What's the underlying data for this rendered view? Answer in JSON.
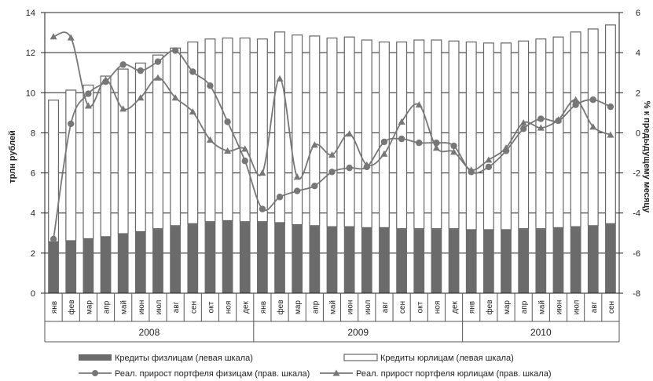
{
  "chart_data": {
    "type": "bar",
    "years": [
      "2008",
      "2009",
      "2010"
    ],
    "months": [
      "янв",
      "фев",
      "мар",
      "апр",
      "май",
      "июн",
      "июл",
      "авг",
      "сен",
      "окт",
      "ноя",
      "дек",
      "янв",
      "фев",
      "мар",
      "апр",
      "май",
      "июн",
      "июл",
      "авг",
      "сен",
      "окт",
      "ноя",
      "дек",
      "янв",
      "фев",
      "мар",
      "апр",
      "май",
      "июн",
      "июл",
      "авг",
      "сен"
    ],
    "ylabel_left": "трлн рублей",
    "ylabel_right": "% к предыдущему месяцу",
    "ylim_left": [
      0,
      14
    ],
    "ylim_right": [
      -8,
      6
    ],
    "yticks_left": [
      "0",
      "2",
      "4",
      "6",
      "8",
      "10",
      "12",
      "14"
    ],
    "yticks_right": [
      "-8",
      "-6",
      "-4",
      "-2",
      "0",
      "2",
      "4",
      "6"
    ],
    "series": [
      {
        "name": "Кредиты физлицам (левая шкала)",
        "axis": "left",
        "kind": "bar",
        "color": "#6b6b6b",
        "values": [
          2.55,
          2.6,
          2.7,
          2.8,
          2.95,
          3.05,
          3.2,
          3.35,
          3.45,
          3.55,
          3.6,
          3.55,
          3.55,
          3.5,
          3.4,
          3.35,
          3.3,
          3.3,
          3.25,
          3.25,
          3.2,
          3.2,
          3.2,
          3.2,
          3.15,
          3.15,
          3.15,
          3.2,
          3.2,
          3.25,
          3.3,
          3.35,
          3.45
        ]
      },
      {
        "name": "Кредиты юрлицам (левая шкала)",
        "axis": "left",
        "kind": "bar",
        "color": "#ffffff",
        "values": [
          7.1,
          7.55,
          7.7,
          8.05,
          8.25,
          8.45,
          8.7,
          8.9,
          9.1,
          9.15,
          9.15,
          9.2,
          9.15,
          9.55,
          9.5,
          9.5,
          9.45,
          9.5,
          9.4,
          9.3,
          9.35,
          9.45,
          9.45,
          9.4,
          9.4,
          9.35,
          9.35,
          9.4,
          9.5,
          9.55,
          9.75,
          9.85,
          9.95
        ]
      },
      {
        "name": "Реал. прирост портфеля физицам (прав. шкала)",
        "axis": "right",
        "kind": "line",
        "marker": "circle",
        "color": "#777777",
        "values": [
          -5.3,
          0.45,
          1.95,
          2.55,
          3.4,
          3.1,
          3.55,
          4.1,
          3.05,
          2.35,
          0.55,
          -1.4,
          -3.8,
          -3.2,
          -2.9,
          -2.65,
          -1.95,
          -1.75,
          -1.7,
          -0.45,
          -0.3,
          -0.5,
          -0.5,
          -0.65,
          -1.95,
          -1.7,
          -0.9,
          0.2,
          0.7,
          0.6,
          1.4,
          1.65,
          1.3
        ]
      },
      {
        "name": "Реал. прирост портфеля юрлицам (прав. шкала)",
        "axis": "right",
        "kind": "line",
        "marker": "triangle",
        "color": "#777777",
        "values": [
          4.8,
          4.75,
          1.35,
          2.65,
          1.2,
          1.75,
          2.75,
          1.75,
          1.05,
          -0.35,
          -0.9,
          -0.8,
          -2.0,
          2.7,
          -2.2,
          -0.6,
          -1.1,
          -0.05,
          -1.6,
          -1.05,
          0.55,
          1.4,
          -0.75,
          -0.95,
          -1.85,
          -1.35,
          -0.75,
          0.5,
          0.25,
          0.65,
          1.65,
          0.3,
          -0.1
        ]
      }
    ]
  }
}
